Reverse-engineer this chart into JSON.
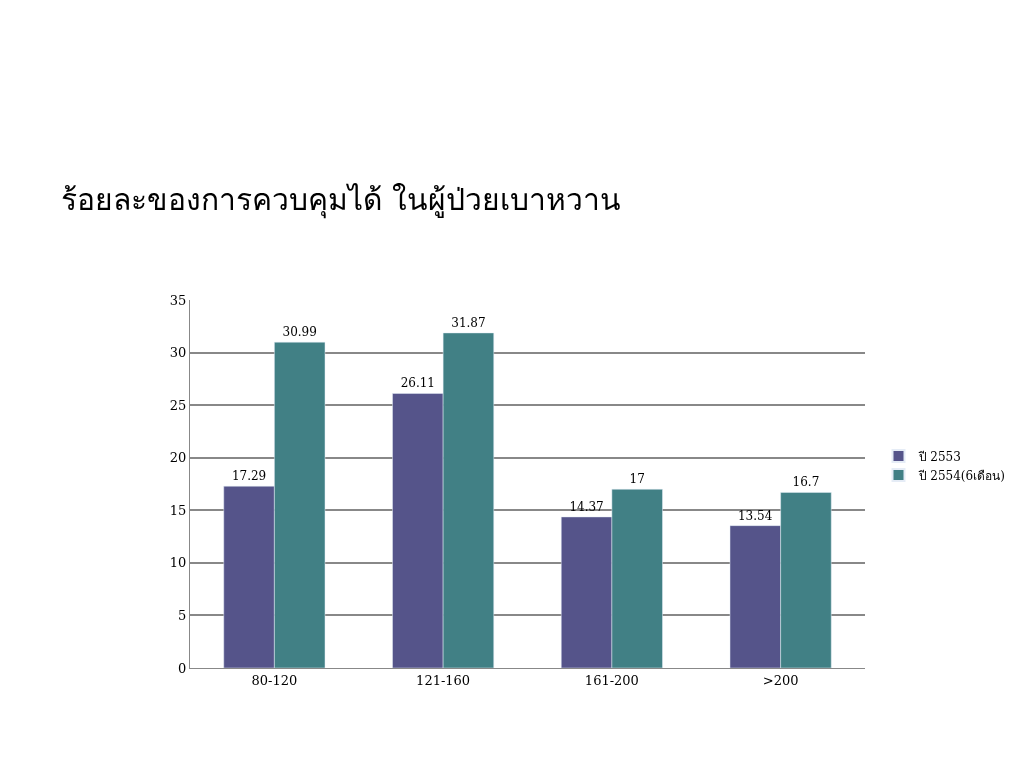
{
  "chart_data": {
    "type": "bar",
    "title": "ร้อยละของการควบคุมได้ ในผู้ป่วยเบาหวาน",
    "categories": [
      "80-120",
      "121-160",
      "161-200",
      ">200"
    ],
    "series": [
      {
        "name": "ปี 2553",
        "color": "#55548a",
        "values": [
          17.29,
          26.11,
          14.37,
          13.54
        ]
      },
      {
        "name": "ปี 2554(6เดือน)",
        "color": "#418085",
        "values": [
          30.99,
          31.87,
          17,
          16.7
        ]
      }
    ],
    "ylim": [
      0,
      35
    ],
    "yticks": [
      0,
      5,
      10,
      15,
      20,
      25,
      30,
      35
    ],
    "grid": "y",
    "legend": "right",
    "data_labels": true
  }
}
